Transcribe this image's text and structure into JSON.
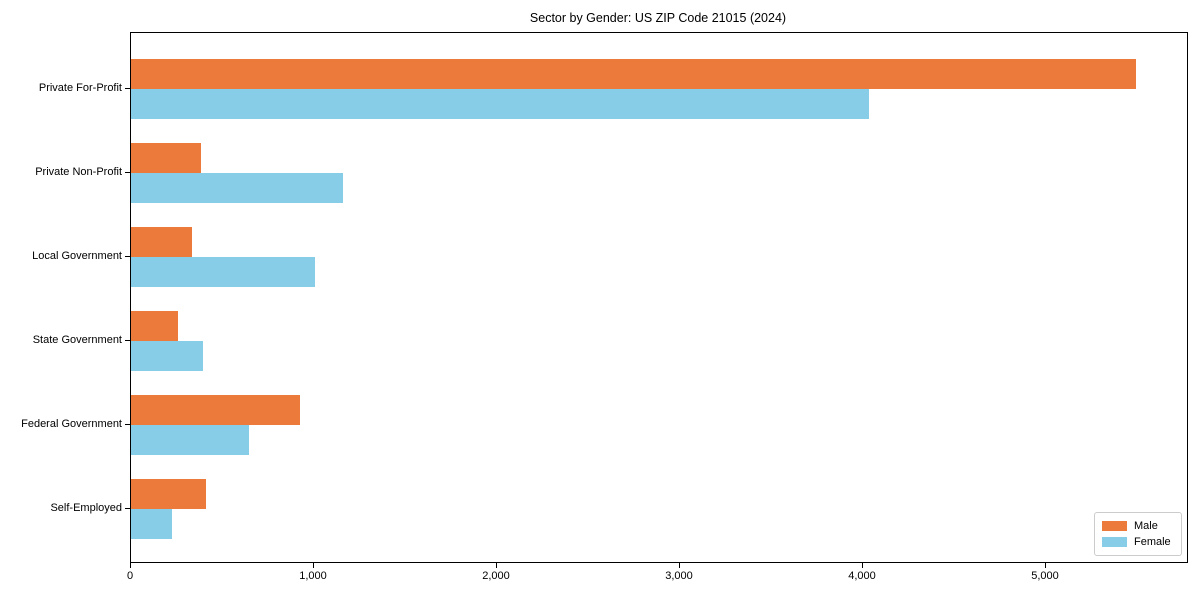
{
  "chart_data": {
    "type": "bar",
    "orientation": "horizontal",
    "title": "Sector by Gender: US ZIP Code 21015 (2024)",
    "xlabel": "",
    "ylabel": "",
    "categories": [
      "Private For-Profit",
      "Private Non-Profit",
      "Local Government",
      "State Government",
      "Federal Government",
      "Self-Employed"
    ],
    "series": [
      {
        "name": "Male",
        "color": "#EB7A3B",
        "values": [
          5490,
          380,
          335,
          255,
          925,
          410
        ]
      },
      {
        "name": "Female",
        "color": "#87CDE8",
        "values": [
          4030,
          1160,
          1005,
          395,
          645,
          225
        ]
      }
    ],
    "xlim": [
      0,
      5770
    ],
    "xticks": [
      0,
      1000,
      2000,
      3000,
      4000,
      5000
    ],
    "xtick_labels": [
      "0",
      "1,000",
      "2,000",
      "3,000",
      "4,000",
      "5,000"
    ],
    "grid": false,
    "legend": {
      "position": "lower right",
      "entries": [
        "Male",
        "Female"
      ]
    }
  }
}
